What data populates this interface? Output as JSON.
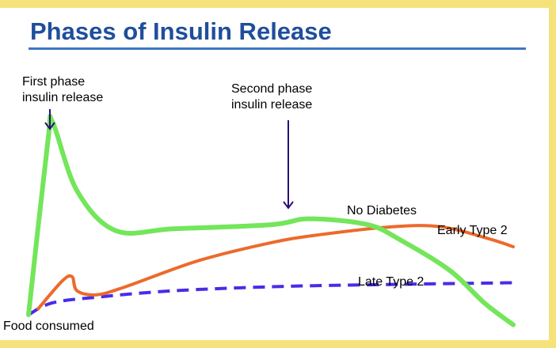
{
  "slide": {
    "title": "Phases of Insulin Release"
  },
  "chart_data": {
    "type": "line",
    "title": "Phases of Insulin Release",
    "xlabel": "",
    "ylabel": "",
    "grid": false,
    "annotations": {
      "first_phase": [
        "First phase",
        "insulin release"
      ],
      "second_phase": [
        "Second phase",
        "insulin release"
      ],
      "x_start": "Food consumed"
    },
    "series": [
      {
        "name": "No Diabetes",
        "color": "#73e65a",
        "style": "solid",
        "points": [
          [
            0,
            0
          ],
          [
            0.04,
            0.87
          ],
          [
            0.05,
            0.96
          ],
          [
            0.1,
            0.62
          ],
          [
            0.18,
            0.42
          ],
          [
            0.3,
            0.43
          ],
          [
            0.5,
            0.45
          ],
          [
            0.58,
            0.48
          ],
          [
            0.7,
            0.45
          ],
          [
            0.77,
            0.37
          ],
          [
            0.87,
            0.22
          ],
          [
            0.94,
            0.06
          ],
          [
            1,
            -0.05
          ]
        ]
      },
      {
        "name": "Early Type 2",
        "color": "#ec6a2c",
        "style": "solid",
        "points": [
          [
            0.02,
            0.03
          ],
          [
            0.07,
            0.17
          ],
          [
            0.09,
            0.19
          ],
          [
            0.1,
            0.12
          ],
          [
            0.14,
            0.1
          ],
          [
            0.2,
            0.14
          ],
          [
            0.35,
            0.27
          ],
          [
            0.5,
            0.36
          ],
          [
            0.6,
            0.4
          ],
          [
            0.75,
            0.44
          ],
          [
            0.85,
            0.44
          ],
          [
            0.95,
            0.38
          ],
          [
            1,
            0.34
          ]
        ]
      },
      {
        "name": "Late Type 2",
        "color": "#4a2be8",
        "style": "dashed",
        "points": [
          [
            0,
            0
          ],
          [
            0.05,
            0.06
          ],
          [
            0.15,
            0.09
          ],
          [
            0.3,
            0.12
          ],
          [
            0.5,
            0.14
          ],
          [
            0.7,
            0.15
          ],
          [
            1,
            0.16
          ]
        ]
      }
    ]
  }
}
